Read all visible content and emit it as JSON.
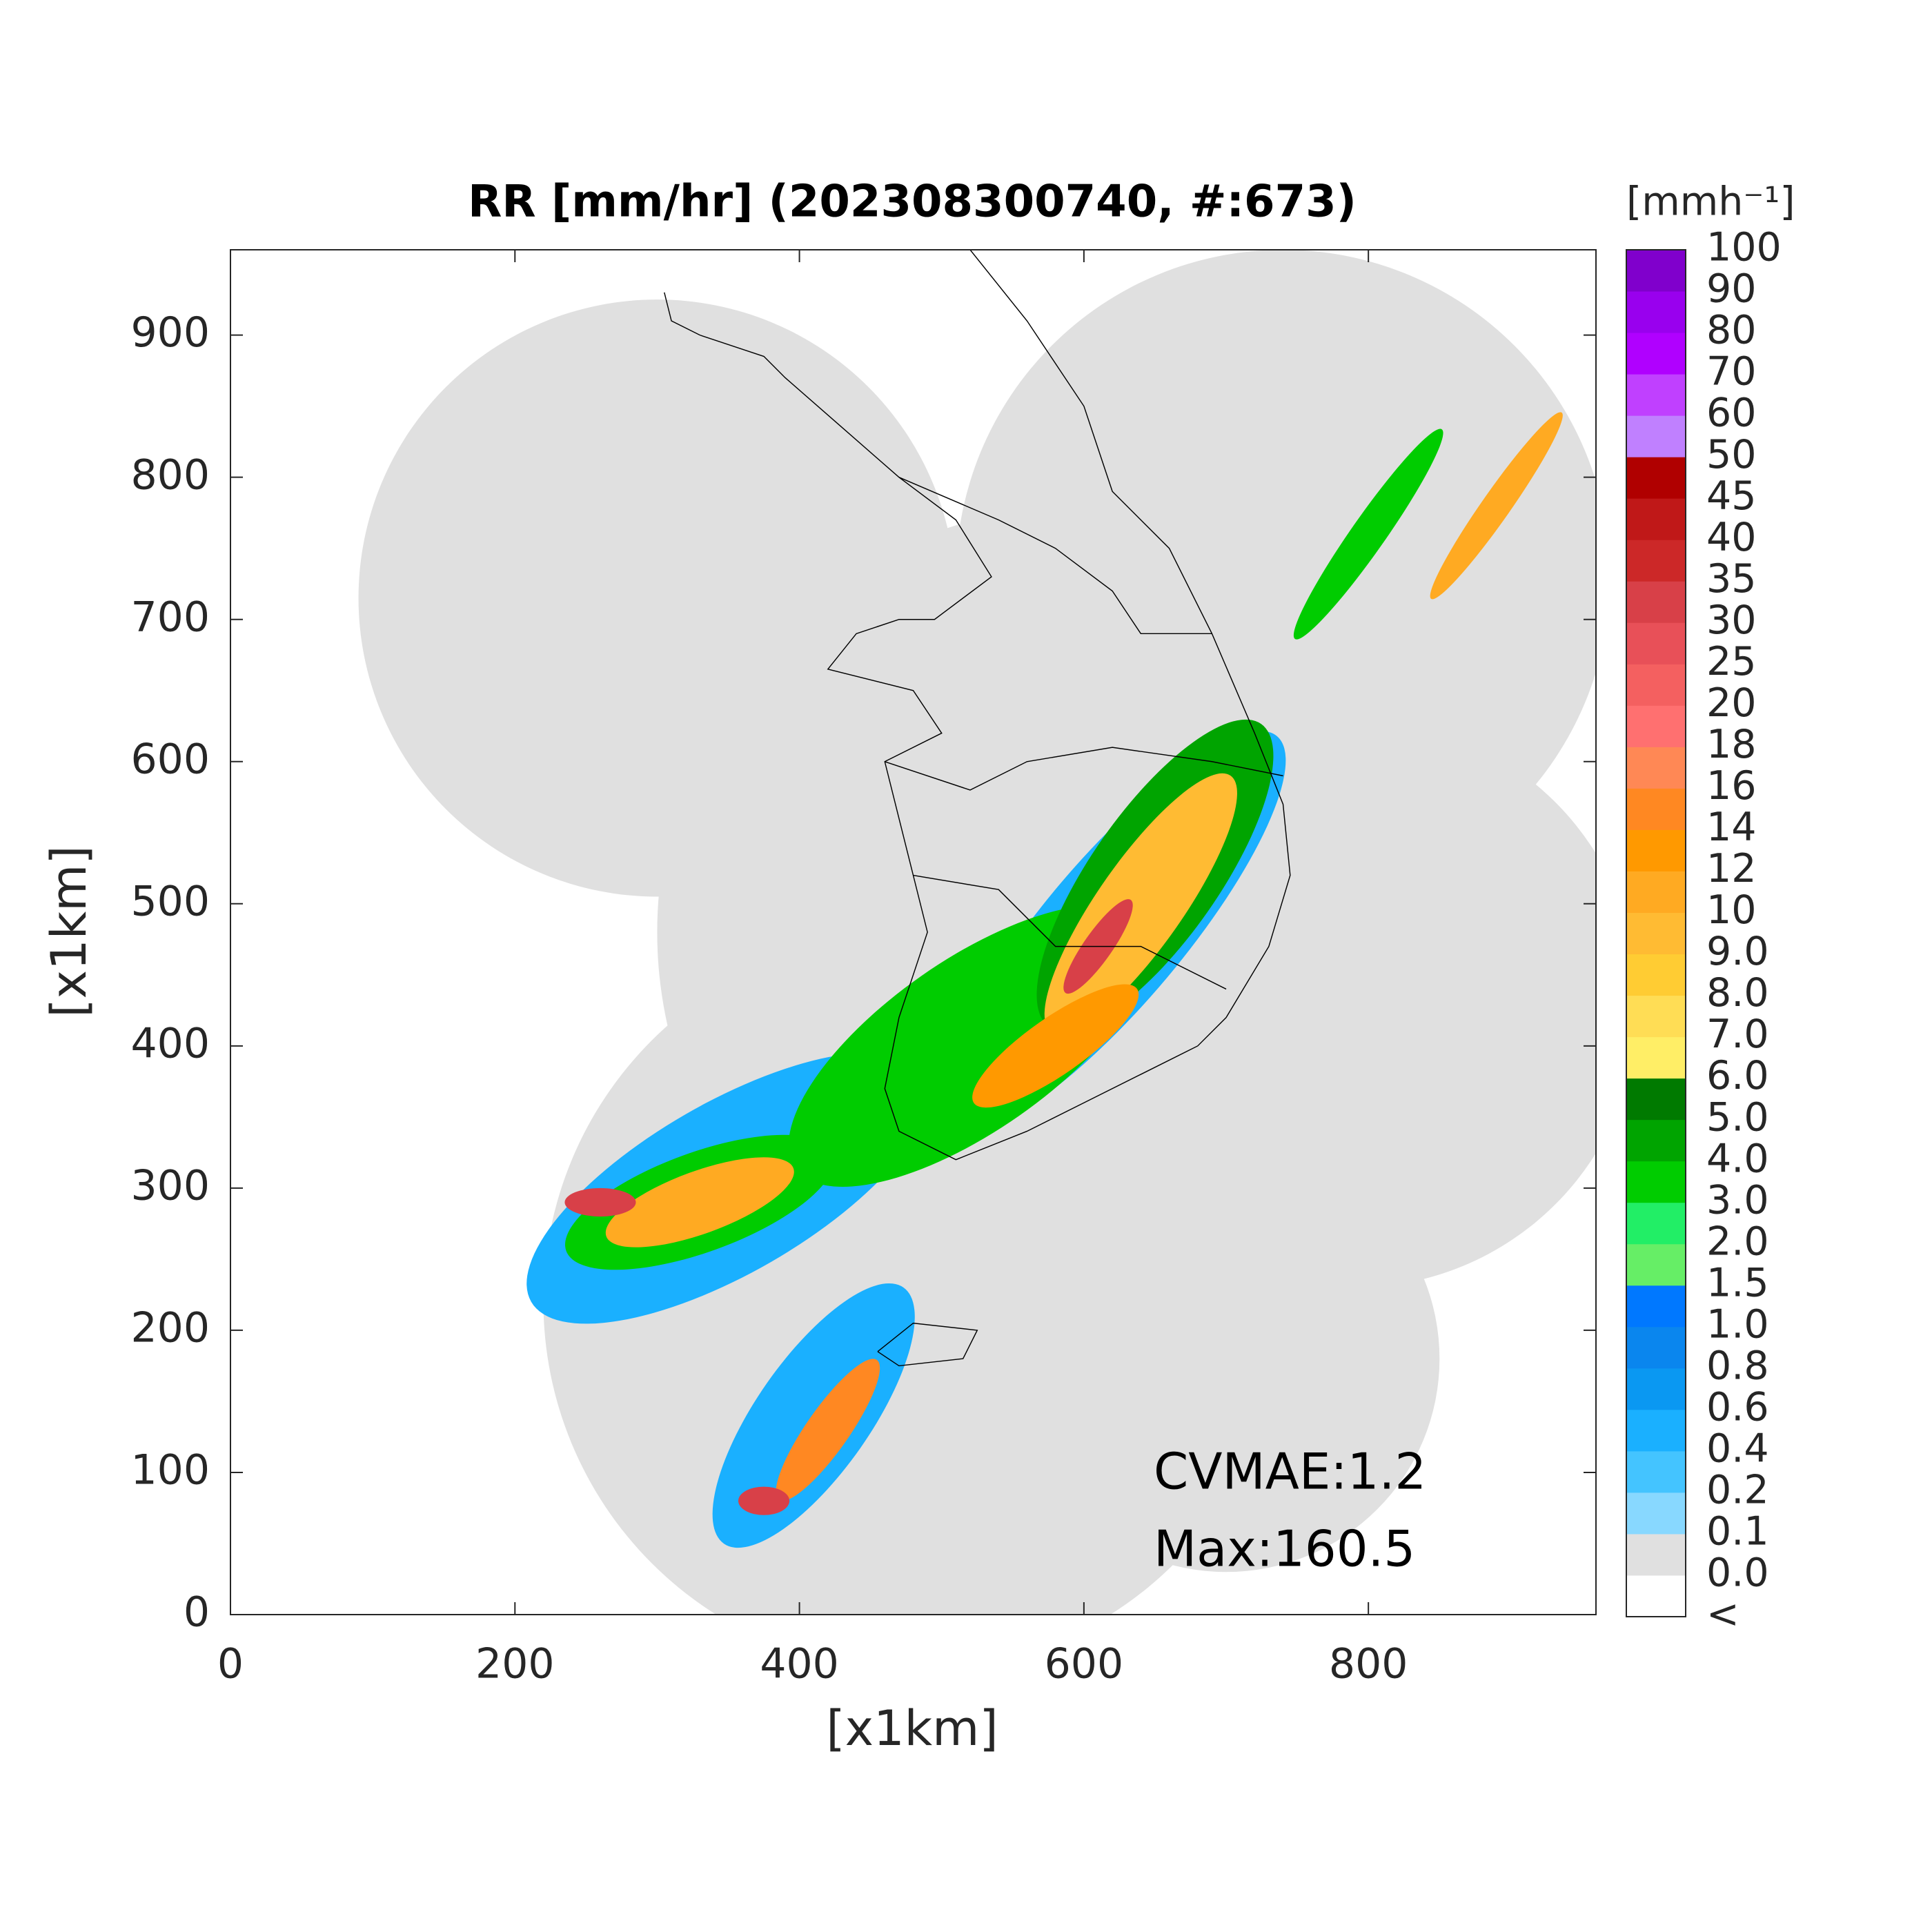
{
  "chart_data": {
    "type": "map",
    "title": "RR [mm/hr] (202308300740, #:673)",
    "xlabel": "[x1km]",
    "ylabel": "[x1km]",
    "xlim": [
      0,
      960
    ],
    "ylim": [
      0,
      960
    ],
    "xticks": [
      0,
      200,
      400,
      600,
      800
    ],
    "yticks": [
      0,
      100,
      200,
      300,
      400,
      500,
      600,
      700,
      800,
      900
    ],
    "colorbar": {
      "label": "[mmh⁻¹]",
      "labels": [
        "<",
        "0.0",
        "0.1",
        "0.2",
        "0.4",
        "0.6",
        "0.8",
        "1.0",
        "1.5",
        "2.0",
        "3.0",
        "4.0",
        "5.0",
        "6.0",
        "7.0",
        "8.0",
        "9.0",
        "10",
        "12",
        "14",
        "16",
        "18",
        "20",
        "25",
        "30",
        "35",
        "40",
        "45",
        "50",
        "60",
        "70",
        "80",
        "90",
        "100"
      ],
      "colors": [
        "#ffffff",
        "#e0e0e0",
        "#88d8ff",
        "#44c4ff",
        "#1ab0ff",
        "#0a98f2",
        "#0a86ee",
        "#0078ff",
        "#66ee66",
        "#22ee66",
        "#00cc00",
        "#00a400",
        "#007a00",
        "#ffee66",
        "#ffdd55",
        "#ffcc33",
        "#ffbb33",
        "#ffaa22",
        "#ff9900",
        "#ff8822",
        "#ff8855",
        "#ff7070",
        "#f46060",
        "#e85058",
        "#d84048",
        "#cc2828",
        "#c01818",
        "#b00000",
        "#c080ff",
        "#c040ff",
        "#b000ff",
        "#9900ee",
        "#8000cc",
        "#333333"
      ]
    },
    "annotations": [
      "CVMAE:1.2",
      "Max:160.5"
    ]
  }
}
